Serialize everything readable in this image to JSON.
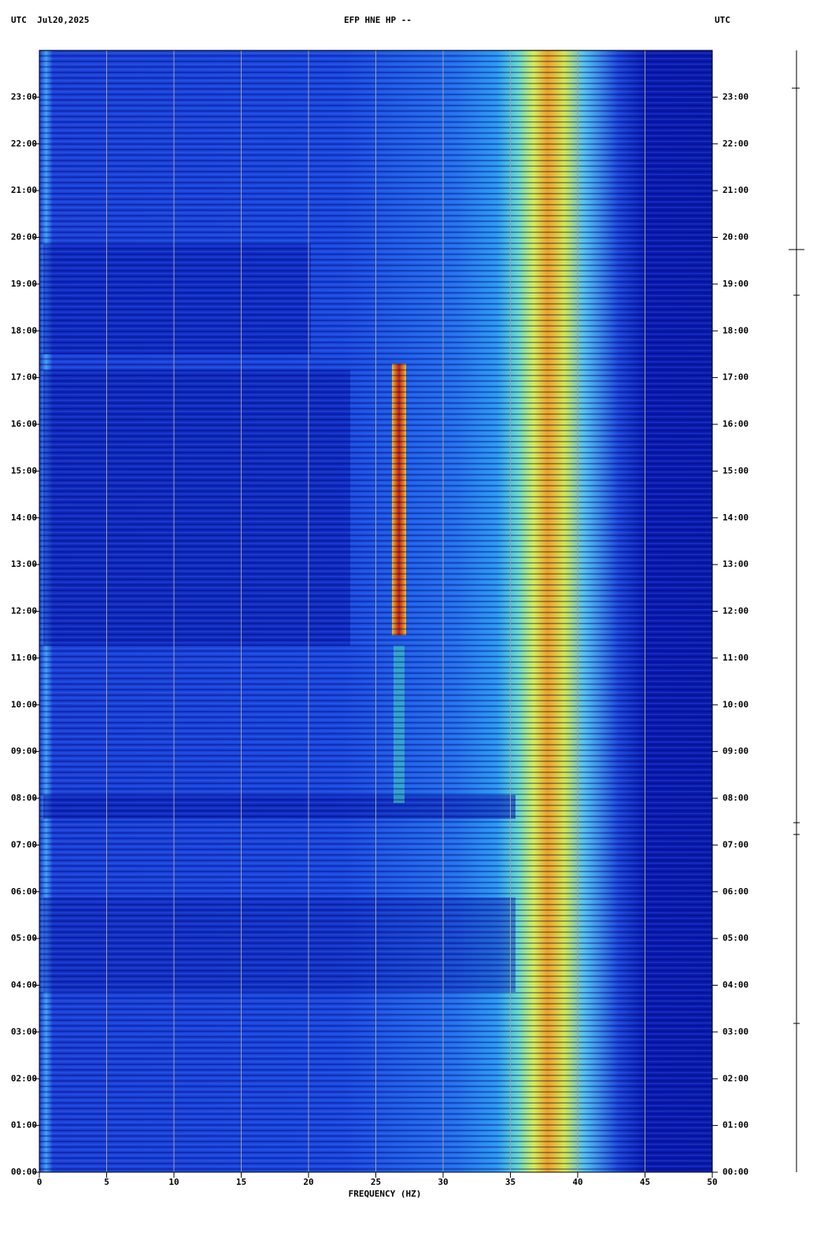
{
  "chart_data": {
    "type": "spectrogram",
    "title": "EFP HNE HP --",
    "date_label": "UTC  Jul20,2025",
    "y_label": "UTC",
    "y2_label": "UTC",
    "xlabel": "FREQUENCY (HZ)",
    "xlim": [
      0,
      50
    ],
    "xticks": [
      0,
      5,
      10,
      15,
      20,
      25,
      30,
      35,
      40,
      45,
      50
    ],
    "ylim": [
      0,
      24
    ],
    "yticks": [
      {
        "value": 0,
        "label": "00:00"
      },
      {
        "value": 1,
        "label": "01:00"
      },
      {
        "value": 2,
        "label": "02:00"
      },
      {
        "value": 3,
        "label": "03:00"
      },
      {
        "value": 4,
        "label": "04:00"
      },
      {
        "value": 5,
        "label": "05:00"
      },
      {
        "value": 6,
        "label": "06:00"
      },
      {
        "value": 7,
        "label": "07:00"
      },
      {
        "value": 8,
        "label": "08:00"
      },
      {
        "value": 9,
        "label": "09:00"
      },
      {
        "value": 10,
        "label": "10:00"
      },
      {
        "value": 11,
        "label": "11:00"
      },
      {
        "value": 12,
        "label": "12:00"
      },
      {
        "value": 13,
        "label": "13:00"
      },
      {
        "value": 14,
        "label": "14:00"
      },
      {
        "value": 15,
        "label": "15:00"
      },
      {
        "value": 16,
        "label": "16:00"
      },
      {
        "value": 17,
        "label": "17:00"
      },
      {
        "value": 18,
        "label": "18:00"
      },
      {
        "value": 19,
        "label": "19:00"
      },
      {
        "value": 20,
        "label": "20:00"
      },
      {
        "value": 21,
        "label": "21:00"
      },
      {
        "value": 22,
        "label": "22:00"
      },
      {
        "value": 23,
        "label": "23:00"
      }
    ],
    "grid": true
  }
}
